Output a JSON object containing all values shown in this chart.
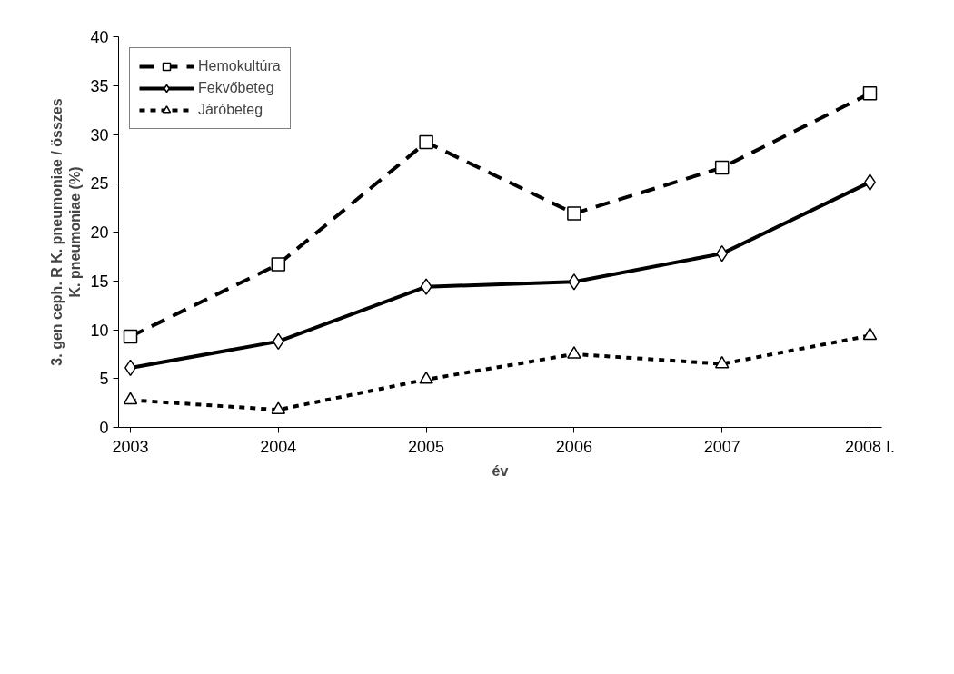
{
  "chart_data": {
    "type": "line",
    "xlabel": "év",
    "ylabel": "3. gen ceph. R K. pneumoniae / összes\nK. pneumoniae (%)",
    "categories": [
      "2003",
      "2004",
      "2005",
      "2006",
      "2007",
      "2008 I."
    ],
    "series": [
      {
        "name": "Hemokultúra",
        "color": "#000000",
        "marker": "square",
        "line_style": "dashed",
        "values": [
          9.3,
          16.7,
          29.2,
          21.9,
          26.6,
          34.2
        ]
      },
      {
        "name": "Fekvőbeteg",
        "color": "#000000",
        "marker": "diamond",
        "line_style": "solid",
        "values": [
          6.1,
          8.8,
          14.4,
          14.9,
          17.8,
          25.1
        ]
      },
      {
        "name": "Járóbeteg",
        "color": "#000000",
        "marker": "triangle",
        "line_style": "dotted",
        "values": [
          2.8,
          1.8,
          4.9,
          7.5,
          6.5,
          9.4
        ]
      }
    ],
    "ylim": [
      0,
      40
    ],
    "yticks": [
      0,
      5,
      10,
      15,
      20,
      25,
      30,
      35,
      40
    ],
    "grid": false,
    "legend": "top left"
  }
}
